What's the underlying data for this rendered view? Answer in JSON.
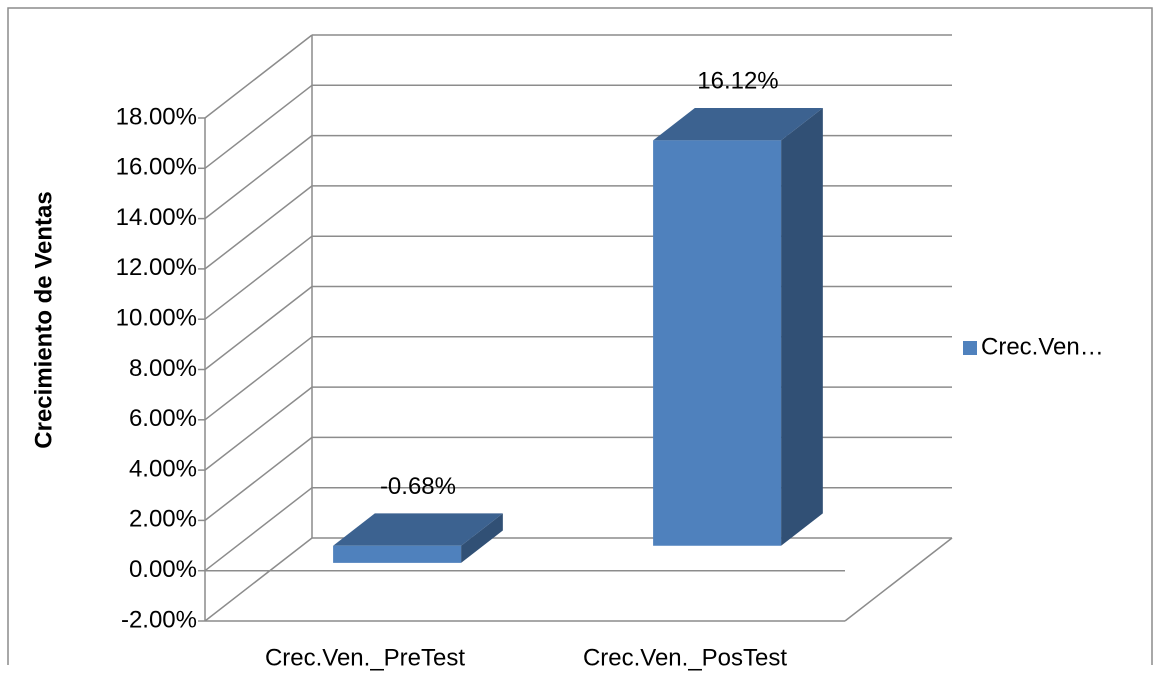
{
  "chart_data": {
    "type": "bar3d",
    "y_axis_label": "Crecimiento de Ventas",
    "categories": [
      "Crec.Ven._PreTest",
      "Crec.Ven._PosTest"
    ],
    "series": [
      {
        "name": "Crec.Ven…",
        "color": "#4f81bd",
        "values": [
          -0.68,
          16.12
        ],
        "value_labels": [
          "-0.68%",
          "16.12%"
        ]
      }
    ],
    "ylim": [
      -2,
      18
    ],
    "yticks": [
      {
        "value": -2,
        "label": "-2.00%"
      },
      {
        "value": 0,
        "label": "0.00%"
      },
      {
        "value": 2,
        "label": "2.00%"
      },
      {
        "value": 4,
        "label": "4.00%"
      },
      {
        "value": 6,
        "label": "6.00%"
      },
      {
        "value": 8,
        "label": "8.00%"
      },
      {
        "value": 10,
        "label": "10.00%"
      },
      {
        "value": 12,
        "label": "12.00%"
      },
      {
        "value": 14,
        "label": "14.00%"
      },
      {
        "value": 16,
        "label": "16.00%"
      },
      {
        "value": 18,
        "label": "18.00%"
      }
    ],
    "grid": true,
    "legend": "right"
  }
}
